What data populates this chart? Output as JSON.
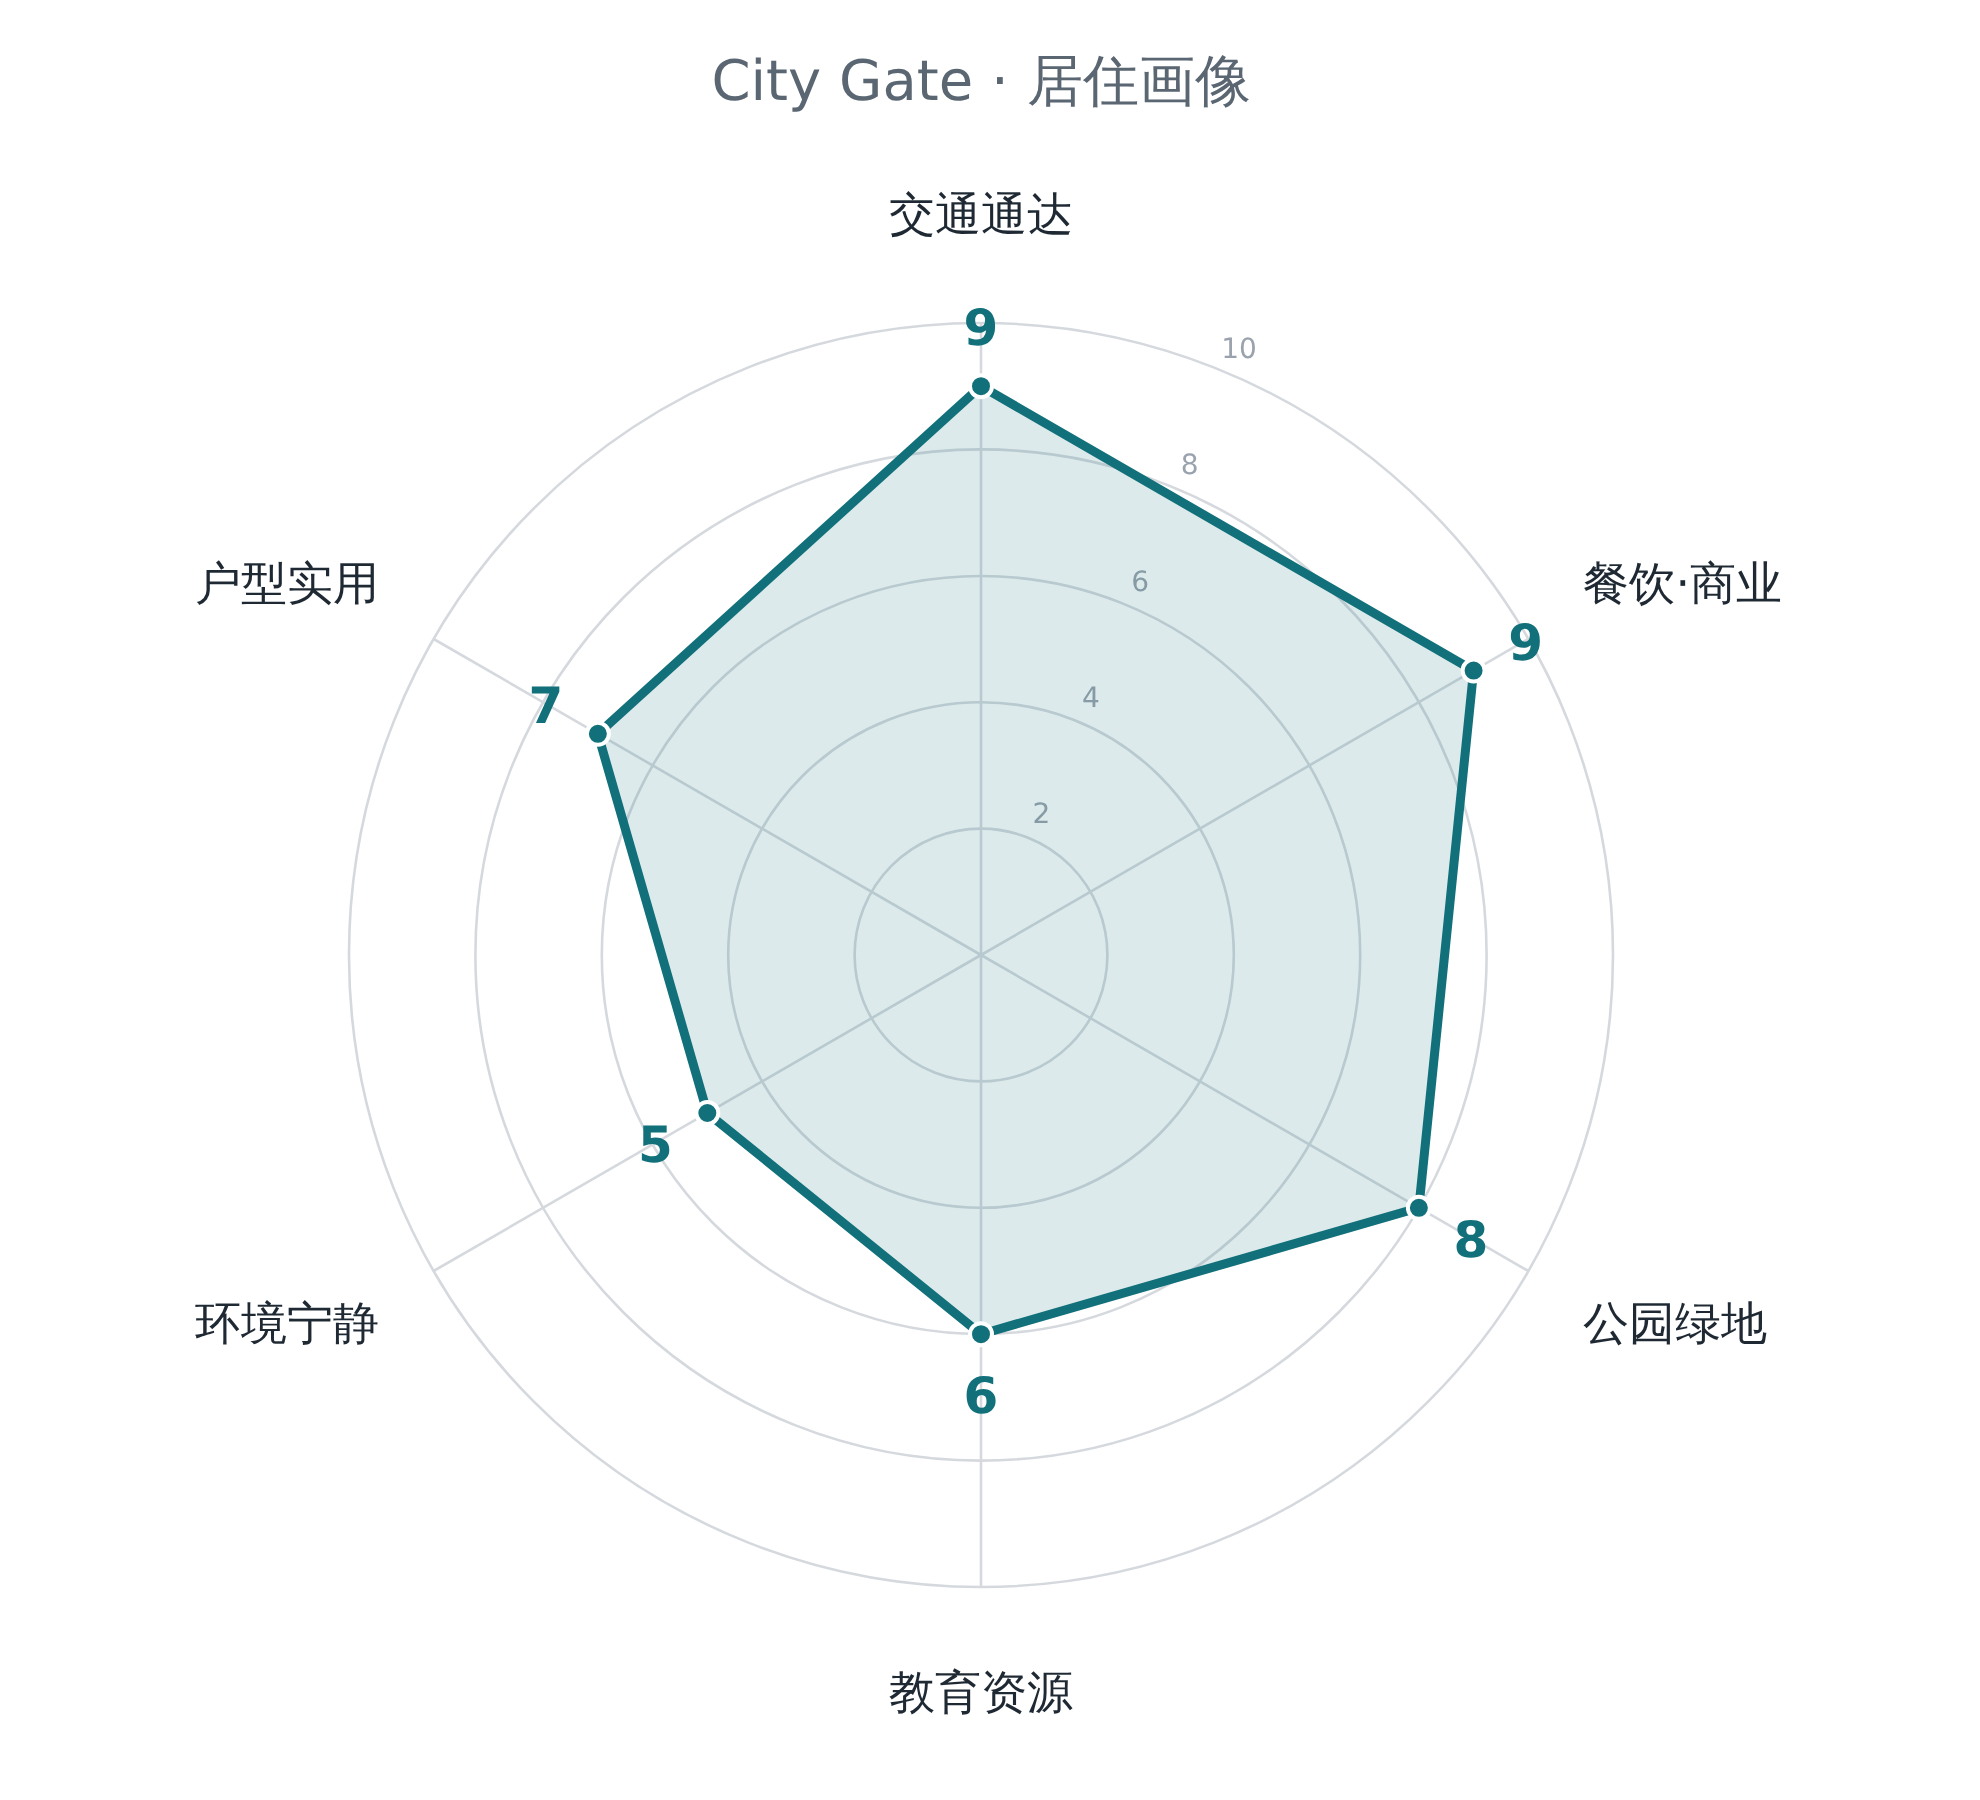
{
  "chart_data": {
    "type": "radar",
    "title": "City Gate · 居住画像",
    "categories": [
      "交通通达",
      "餐饮·商业",
      "公园绿地",
      "教育资源",
      "环境宁静",
      "户型实用"
    ],
    "series": [
      {
        "color": "#11707a",
        "values": [
          9,
          9,
          8,
          6,
          5,
          7
        ]
      }
    ],
    "ylim": [
      0,
      10
    ],
    "yticks": [
      2,
      4,
      6,
      8,
      10
    ],
    "grid": true,
    "marker": "circle",
    "data_labels": true
  }
}
